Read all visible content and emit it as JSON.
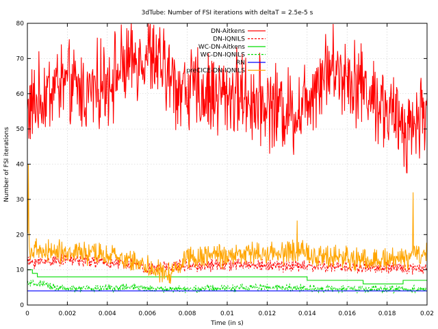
{
  "chart_data": {
    "type": "line",
    "title": "3dTube: Number of FSI iterations with deltaT = 2.5e-5 s",
    "xlabel": "Time (in s)",
    "ylabel": "Number of FSI iterations",
    "xlim": [
      0,
      0.02
    ],
    "ylim": [
      0,
      80
    ],
    "x_ticks": [
      "0",
      "0.002",
      "0.004",
      "0.006",
      "0.008",
      "0.01",
      "0.012",
      "0.014",
      "0.016",
      "0.018",
      "0.02"
    ],
    "y_ticks": [
      "0",
      "10",
      "20",
      "30",
      "40",
      "50",
      "60",
      "70",
      "80"
    ],
    "grid": true,
    "legend_position": "top-right",
    "x_step": 2.5e-05,
    "series": [
      {
        "name": "DN-Aitkens",
        "color": "#ff0000",
        "style": "solid",
        "segments": [
          [
            0,
            55
          ],
          [
            0.0015,
            63
          ],
          [
            0.003,
            60
          ],
          [
            0.0045,
            66
          ],
          [
            0.006,
            72
          ],
          [
            0.0075,
            62
          ],
          [
            0.009,
            60
          ],
          [
            0.0105,
            60
          ],
          [
            0.012,
            57
          ],
          [
            0.0135,
            55
          ],
          [
            0.015,
            68
          ],
          [
            0.0165,
            64
          ],
          [
            0.018,
            55
          ],
          [
            0.019,
            50
          ],
          [
            0.02,
            56
          ]
        ],
        "noise_amplitude": 9
      },
      {
        "name": "DN-IQNILS",
        "color": "#ff0000",
        "style": "dashed",
        "segments": [
          [
            0,
            12
          ],
          [
            0.002,
            13
          ],
          [
            0.004,
            12
          ],
          [
            0.0055,
            11.5
          ],
          [
            0.006,
            10
          ],
          [
            0.007,
            11
          ],
          [
            0.01,
            11.5
          ],
          [
            0.014,
            11
          ],
          [
            0.018,
            10.5
          ],
          [
            0.02,
            10.5
          ]
        ],
        "noise_amplitude": 1.3
      },
      {
        "name": "WC-DN-Aitkens",
        "color": "#00dd00",
        "style": "solid",
        "steps": [
          [
            0,
            10
          ],
          [
            0.00025,
            9
          ],
          [
            0.0005,
            8
          ],
          [
            0.0014,
            8
          ],
          [
            0.014,
            7
          ],
          [
            0.0168,
            6
          ],
          [
            0.0176,
            6
          ],
          [
            0.0188,
            7
          ],
          [
            0.0199,
            7
          ],
          [
            0.02,
            7
          ]
        ]
      },
      {
        "name": "WC-DN-IQNILS",
        "color": "#00dd00",
        "style": "dashed",
        "segments": [
          [
            0,
            6
          ],
          [
            0.0005,
            6
          ],
          [
            0.002,
            4.5
          ],
          [
            0.005,
            5
          ],
          [
            0.007,
            4.5
          ],
          [
            0.012,
            5
          ],
          [
            0.016,
            4.5
          ],
          [
            0.02,
            4.5
          ]
        ],
        "noise_amplitude": 0.8
      },
      {
        "name": "RN",
        "color": "#0000ff",
        "style": "solid",
        "segments": [
          [
            0,
            4
          ],
          [
            0.02,
            4
          ]
        ]
      },
      {
        "name": "preCICE-DN-IQNILS",
        "color": "#ffa500",
        "style": "solid",
        "segments": [
          [
            0,
            22
          ],
          [
            0.0002,
            15
          ],
          [
            0.002,
            15
          ],
          [
            0.004,
            14
          ],
          [
            0.0058,
            12
          ],
          [
            0.0065,
            9
          ],
          [
            0.0072,
            9
          ],
          [
            0.008,
            14
          ],
          [
            0.01,
            14
          ],
          [
            0.012,
            15
          ],
          [
            0.014,
            15
          ],
          [
            0.016,
            13
          ],
          [
            0.018,
            13
          ],
          [
            0.0193,
            14
          ],
          [
            0.02,
            14
          ]
        ],
        "noise_amplitude": 2.5,
        "spikes": [
          [
            0.0193,
            32
          ],
          [
            0.0135,
            24
          ],
          [
            5e-05,
            40
          ]
        ]
      }
    ]
  }
}
